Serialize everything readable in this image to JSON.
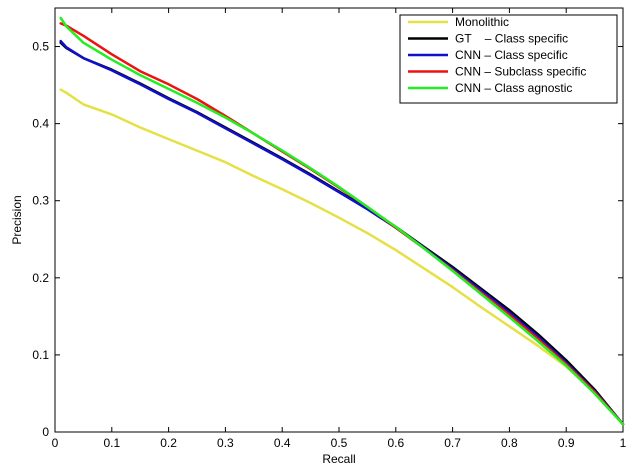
{
  "chart_data": {
    "type": "line",
    "title": "",
    "xlabel": "Recall",
    "ylabel": "Precision",
    "xlim": [
      0,
      1
    ],
    "ylim": [
      0,
      0.55
    ],
    "xticks": [
      "0",
      "0.1",
      "0.2",
      "0.3",
      "0.4",
      "0.5",
      "0.6",
      "0.7",
      "0.8",
      "0.9",
      "1"
    ],
    "yticks": [
      "0",
      "0.1",
      "0.2",
      "0.3",
      "0.4",
      "0.5"
    ],
    "grid": false,
    "legend_position": "top-right",
    "series": [
      {
        "name": "Monolithic",
        "color": "#e5e045",
        "x": [
          0.01,
          0.02,
          0.05,
          0.1,
          0.15,
          0.2,
          0.25,
          0.3,
          0.35,
          0.4,
          0.45,
          0.5,
          0.55,
          0.6,
          0.65,
          0.7,
          0.75,
          0.8,
          0.85,
          0.9,
          0.95,
          1.0
        ],
        "y": [
          0.444,
          0.44,
          0.425,
          0.412,
          0.395,
          0.38,
          0.365,
          0.35,
          0.332,
          0.315,
          0.297,
          0.278,
          0.258,
          0.236,
          0.212,
          0.188,
          0.162,
          0.137,
          0.112,
          0.085,
          0.052,
          0.01
        ]
      },
      {
        "name": "GT    – Class specific",
        "color": "#000000",
        "x": [
          0.01,
          0.02,
          0.05,
          0.1,
          0.15,
          0.2,
          0.25,
          0.3,
          0.35,
          0.4,
          0.45,
          0.5,
          0.55,
          0.6,
          0.65,
          0.7,
          0.75,
          0.8,
          0.85,
          0.9,
          0.95,
          1.0
        ],
        "y": [
          0.505,
          0.498,
          0.485,
          0.47,
          0.452,
          0.433,
          0.415,
          0.395,
          0.375,
          0.355,
          0.334,
          0.312,
          0.29,
          0.266,
          0.24,
          0.214,
          0.186,
          0.158,
          0.127,
          0.093,
          0.055,
          0.01
        ]
      },
      {
        "name": "CNN – Class specific",
        "color": "#1010cc",
        "x": [
          0.01,
          0.02,
          0.05,
          0.1,
          0.15,
          0.2,
          0.25,
          0.3,
          0.35,
          0.4,
          0.45,
          0.5,
          0.55,
          0.6,
          0.65,
          0.7,
          0.75,
          0.8,
          0.85,
          0.9,
          0.95,
          1.0
        ],
        "y": [
          0.507,
          0.499,
          0.485,
          0.469,
          0.451,
          0.432,
          0.414,
          0.394,
          0.374,
          0.354,
          0.333,
          0.311,
          0.289,
          0.265,
          0.239,
          0.212,
          0.184,
          0.155,
          0.124,
          0.09,
          0.053,
          0.01
        ]
      },
      {
        "name": "CNN – Subclass specific",
        "color": "#ee1111",
        "x": [
          0.01,
          0.02,
          0.05,
          0.1,
          0.15,
          0.2,
          0.25,
          0.3,
          0.35,
          0.4,
          0.45,
          0.5,
          0.55,
          0.6,
          0.65,
          0.7,
          0.75,
          0.8,
          0.85,
          0.9,
          0.95,
          1.0
        ],
        "y": [
          0.53,
          0.527,
          0.514,
          0.49,
          0.468,
          0.451,
          0.432,
          0.41,
          0.387,
          0.364,
          0.341,
          0.317,
          0.292,
          0.265,
          0.238,
          0.21,
          0.181,
          0.152,
          0.121,
          0.088,
          0.052,
          0.01
        ]
      },
      {
        "name": "CNN – Class agnostic",
        "color": "#22ee22",
        "x": [
          0.01,
          0.02,
          0.05,
          0.1,
          0.15,
          0.2,
          0.25,
          0.3,
          0.35,
          0.4,
          0.45,
          0.5,
          0.55,
          0.6,
          0.65,
          0.7,
          0.75,
          0.8,
          0.85,
          0.9,
          0.95,
          1.0
        ],
        "y": [
          0.537,
          0.526,
          0.505,
          0.483,
          0.463,
          0.445,
          0.427,
          0.408,
          0.387,
          0.365,
          0.342,
          0.318,
          0.292,
          0.266,
          0.238,
          0.209,
          0.179,
          0.149,
          0.118,
          0.086,
          0.05,
          0.01
        ]
      }
    ]
  }
}
